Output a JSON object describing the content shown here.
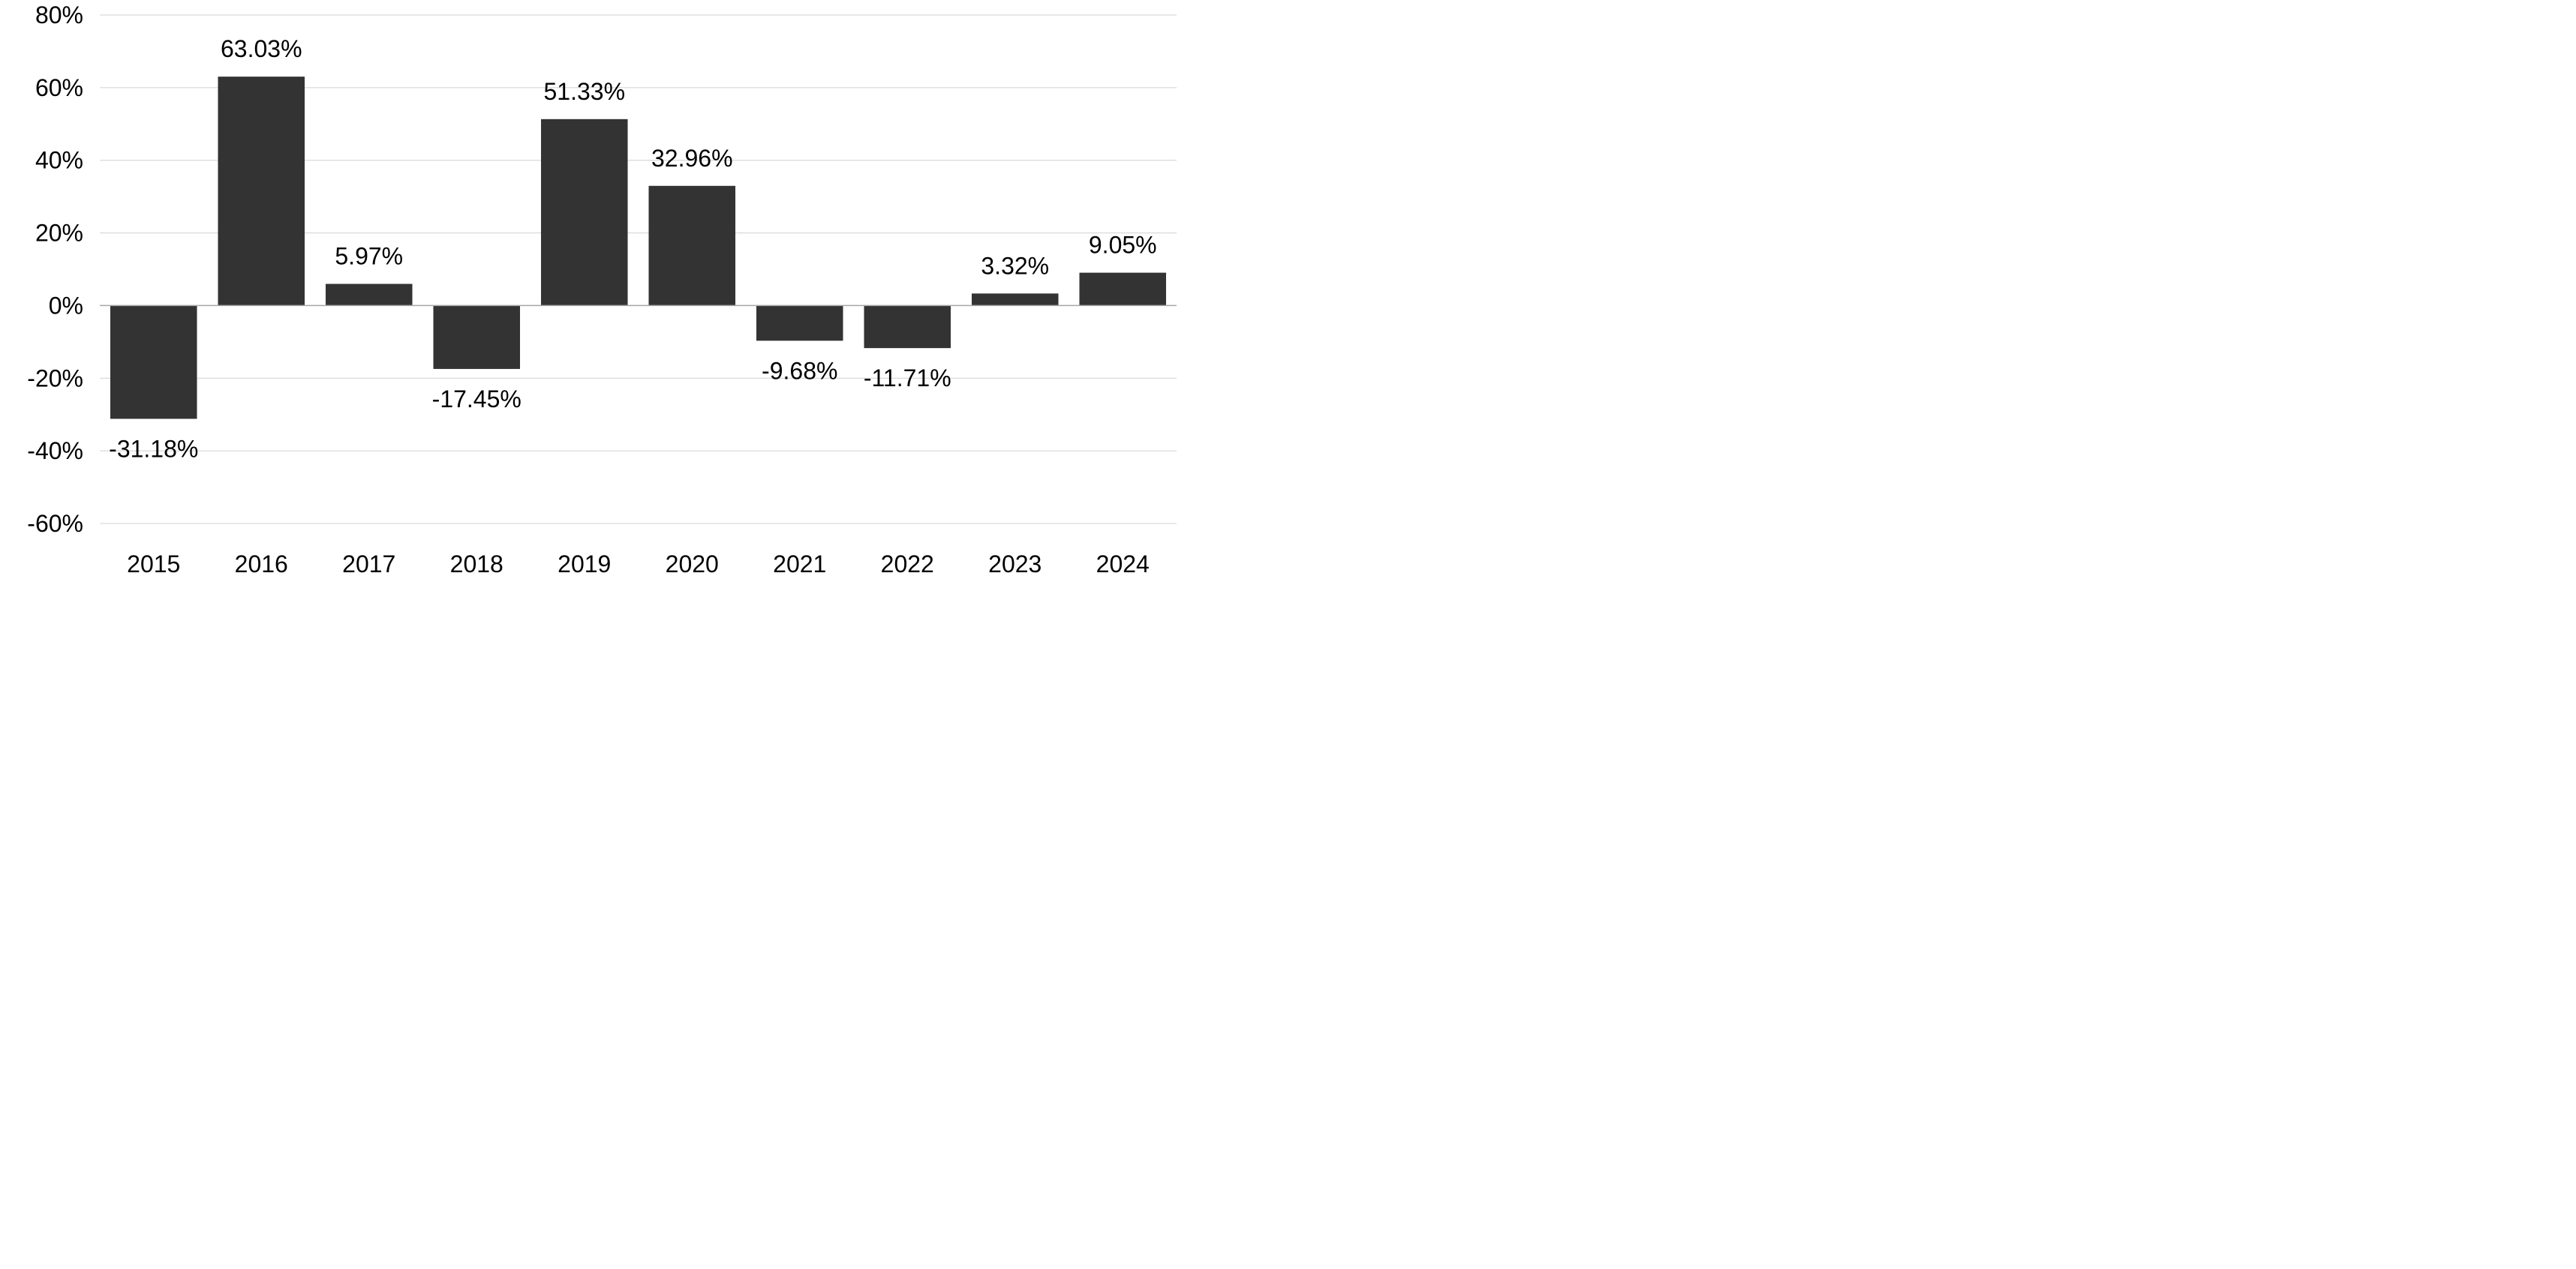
{
  "chart_data": {
    "type": "bar",
    "categories": [
      "2015",
      "2016",
      "2017",
      "2018",
      "2019",
      "2020",
      "2021",
      "2022",
      "2023",
      "2024"
    ],
    "values": [
      -31.18,
      63.03,
      5.97,
      -17.45,
      51.33,
      32.96,
      -9.68,
      -11.71,
      3.32,
      9.05
    ],
    "data_labels": [
      "-31.18%",
      "63.03%",
      "5.97%",
      "-17.45%",
      "51.33%",
      "32.96%",
      "-9.68%",
      "-11.71%",
      "3.32%",
      "9.05%"
    ],
    "yticks": [
      80,
      60,
      40,
      20,
      0,
      -20,
      -40,
      -60
    ],
    "ytick_labels": [
      "80%",
      "60%",
      "40%",
      "20%",
      "0%",
      "-20%",
      "-40%",
      "-60%"
    ],
    "ylim": [
      -60,
      80
    ],
    "grid": true,
    "bar_color": "#333333"
  }
}
